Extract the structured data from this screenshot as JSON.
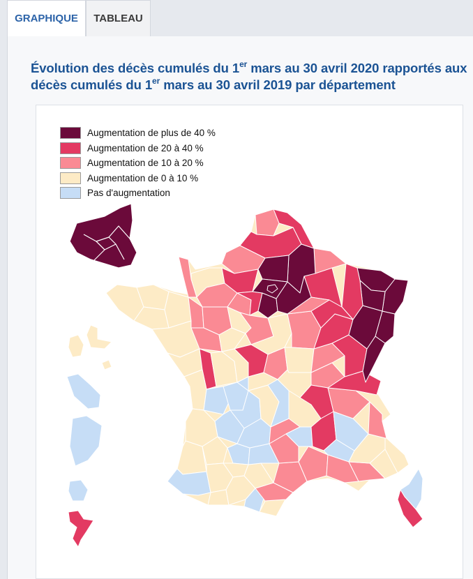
{
  "tabs": {
    "graph_label": "GRAPHIQUE",
    "table_label": "TABLEAU"
  },
  "title": {
    "line1_a": "Évolution des décès cumulés du 1",
    "line1_sup": "er",
    "line1_b": " mars au 30 avril 2020 rapportés aux",
    "line2_a": "décès cumulés du 1",
    "line2_sup": "er",
    "line2_b": " mars au 30 avril 2019 par département"
  },
  "legend": {
    "items": [
      {
        "label": "Augmentation de plus de 40 %",
        "color": "#6b0a3a"
      },
      {
        "label": "Augmentation de 20 à 40 %",
        "color": "#e33a62"
      },
      {
        "label": "Augmentation de 10 à 20 %",
        "color": "#fa8a94"
      },
      {
        "label": "Augmentation de 0 à 10 %",
        "color": "#fdebc6"
      },
      {
        "label": "Pas d'augmentation",
        "color": "#c6ddf6"
      }
    ]
  },
  "colors": {
    "gt40": "#6b0a3a",
    "c20_40": "#e33a62",
    "c10_20": "#fa8a94",
    "c0_10": "#fdebc6",
    "none": "#c6ddf6",
    "border": "#ffffff"
  }
}
